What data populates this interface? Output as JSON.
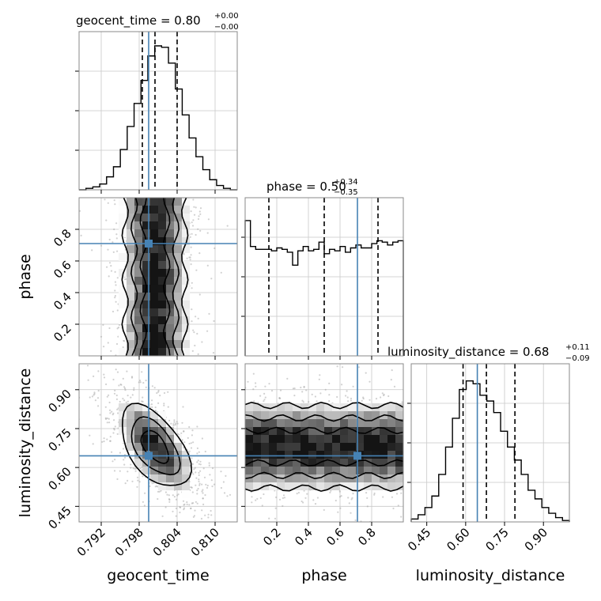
{
  "chart_data": {
    "type": "corner",
    "colors": {
      "truth": "#4682b4",
      "hist": "#000000",
      "grid": "#c8c8c8",
      "quantile": "#000000"
    },
    "parameters": [
      {
        "key": "geocent_time",
        "label": "geocent_time",
        "range": [
          0.7885,
          0.8135
        ],
        "ticks": [
          "0.792",
          "0.798",
          "0.804",
          "0.810"
        ],
        "tick_values": [
          0.792,
          0.798,
          0.804,
          0.81
        ],
        "truth": 0.7995,
        "quantiles": [
          0.7985,
          0.8005,
          0.804
        ]
      },
      {
        "key": "phase",
        "label": "phase",
        "range": [
          0.0,
          1.0
        ],
        "ticks": [
          "0.2",
          "0.4",
          "0.6",
          "0.8"
        ],
        "tick_values": [
          0.2,
          0.4,
          0.6,
          0.8
        ],
        "truth": 0.71,
        "quantiles": [
          0.15,
          0.5,
          0.84
        ]
      },
      {
        "key": "luminosity_distance",
        "label": "luminosity_distance",
        "range": [
          0.39,
          1.0
        ],
        "ticks": [
          "0.45",
          "0.60",
          "0.75",
          "0.90"
        ],
        "tick_values": [
          0.45,
          0.6,
          0.75,
          0.9
        ],
        "truth": 0.645,
        "quantiles": [
          0.59,
          0.68,
          0.79
        ]
      }
    ],
    "titles": [
      {
        "main": "geocent_time = 0.80",
        "plus": "+0.00",
        "minus": "−0.00"
      },
      {
        "main": "phase = 0.50",
        "plus": "+0.34",
        "minus": "−0.35"
      },
      {
        "main": "luminosity_distance = 0.68",
        "plus": "+0.11",
        "minus": "−0.09"
      }
    ],
    "y_tick_labels": {
      "phase": [
        "0.2",
        "0.4",
        "0.6",
        "0.8"
      ],
      "luminosity_distance": [
        "0.45",
        "0.60",
        "0.75",
        "0.90"
      ]
    },
    "histograms": {
      "geocent_time": [
        0,
        1,
        2,
        4,
        9,
        16,
        28,
        44,
        60,
        76,
        93,
        100,
        99,
        88,
        70,
        52,
        36,
        23,
        14,
        7,
        3,
        1,
        0
      ],
      "phase": [
        94,
        76,
        74,
        74,
        74,
        73,
        75,
        74,
        72,
        63,
        73,
        76,
        73,
        74,
        79,
        71,
        74,
        73,
        76,
        72,
        75,
        77,
        75,
        75,
        78,
        80,
        79,
        77,
        79,
        80
      ],
      "luminosity_distance": [
        2,
        5,
        10,
        18,
        33,
        52,
        72,
        92,
        98,
        96,
        88,
        84,
        76,
        63,
        52,
        43,
        33,
        22,
        16,
        10,
        6,
        3,
        1
      ]
    }
  }
}
